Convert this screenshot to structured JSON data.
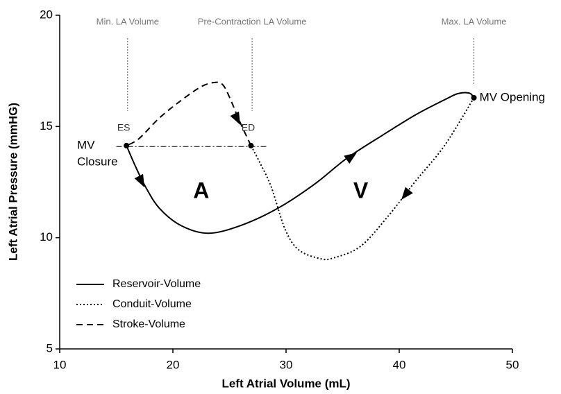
{
  "chart_data": {
    "type": "line",
    "xlabel": "Left Atrial Volume (mL)",
    "ylabel": "Left Atrial Pressure (mmHG)",
    "xlim": [
      10,
      50
    ],
    "ylim": [
      5,
      20
    ],
    "xticks": [
      10,
      20,
      30,
      40,
      50
    ],
    "yticks": [
      5,
      10,
      15,
      20
    ],
    "legend": "lower left",
    "series": [
      {
        "name": "Reservoir-Volume",
        "color": "#000000",
        "style": "solid",
        "x": [
          15.9,
          16.7,
          17.6,
          18.8,
          20.7,
          23.1,
          26,
          29.3,
          32.5,
          35.4,
          38.5,
          41.5,
          44,
          45.2,
          46.2,
          46.6
        ],
        "values": [
          14.14,
          13.2,
          12.27,
          11.33,
          10.55,
          10.2,
          10.55,
          11.33,
          12.4,
          13.58,
          14.6,
          15.54,
          16.2,
          16.48,
          16.5,
          16.29
        ]
      },
      {
        "name": "Conduit-Volume",
        "color": "#000000",
        "style": "dotted",
        "x": [
          46.6,
          44,
          41.5,
          39.1,
          36.6,
          34.2,
          33,
          31.1,
          29.9,
          28.7,
          27.7,
          26.9
        ],
        "values": [
          16.29,
          14.14,
          12.58,
          11.02,
          9.62,
          9.09,
          9.06,
          9.46,
          10.4,
          12.27,
          13.36,
          14.14
        ]
      },
      {
        "name": "Stroke-Volume",
        "color": "#000000",
        "style": "dashed",
        "x": [
          26.9,
          25.9,
          25,
          24.4,
          23.7,
          22.5,
          20.7,
          18.8,
          17,
          15.9
        ],
        "values": [
          14.14,
          15.23,
          16.32,
          16.88,
          16.98,
          16.79,
          16.16,
          15.38,
          14.45,
          14.14
        ]
      }
    ],
    "reference_line": {
      "x": [
        15,
        28.3
      ],
      "y": [
        14.1,
        14.1
      ]
    },
    "guides": [
      {
        "text": "Min. LA Volume",
        "x": 16,
        "y": [
          18.97,
          15.7
        ]
      },
      {
        "text": "Pre-Contraction LA Volume",
        "x": 27,
        "y": [
          18.97,
          15.7
        ]
      },
      {
        "text": "Max. LA Volume",
        "x": 46.6,
        "y": [
          18.97,
          16.9
        ]
      }
    ],
    "points": [
      {
        "label": "ES",
        "x": 15.9,
        "y": 14.14
      },
      {
        "label": "ED",
        "x": 26.9,
        "y": 14.14
      },
      {
        "label": "MV Opening",
        "x": 46.6,
        "y": 16.29
      }
    ],
    "closure_label": [
      "MV",
      "Closure"
    ],
    "region_labels": [
      {
        "text": "A",
        "x": 22.5,
        "y": 12.05
      },
      {
        "text": "V",
        "x": 36.6,
        "y": 12.05
      }
    ]
  }
}
